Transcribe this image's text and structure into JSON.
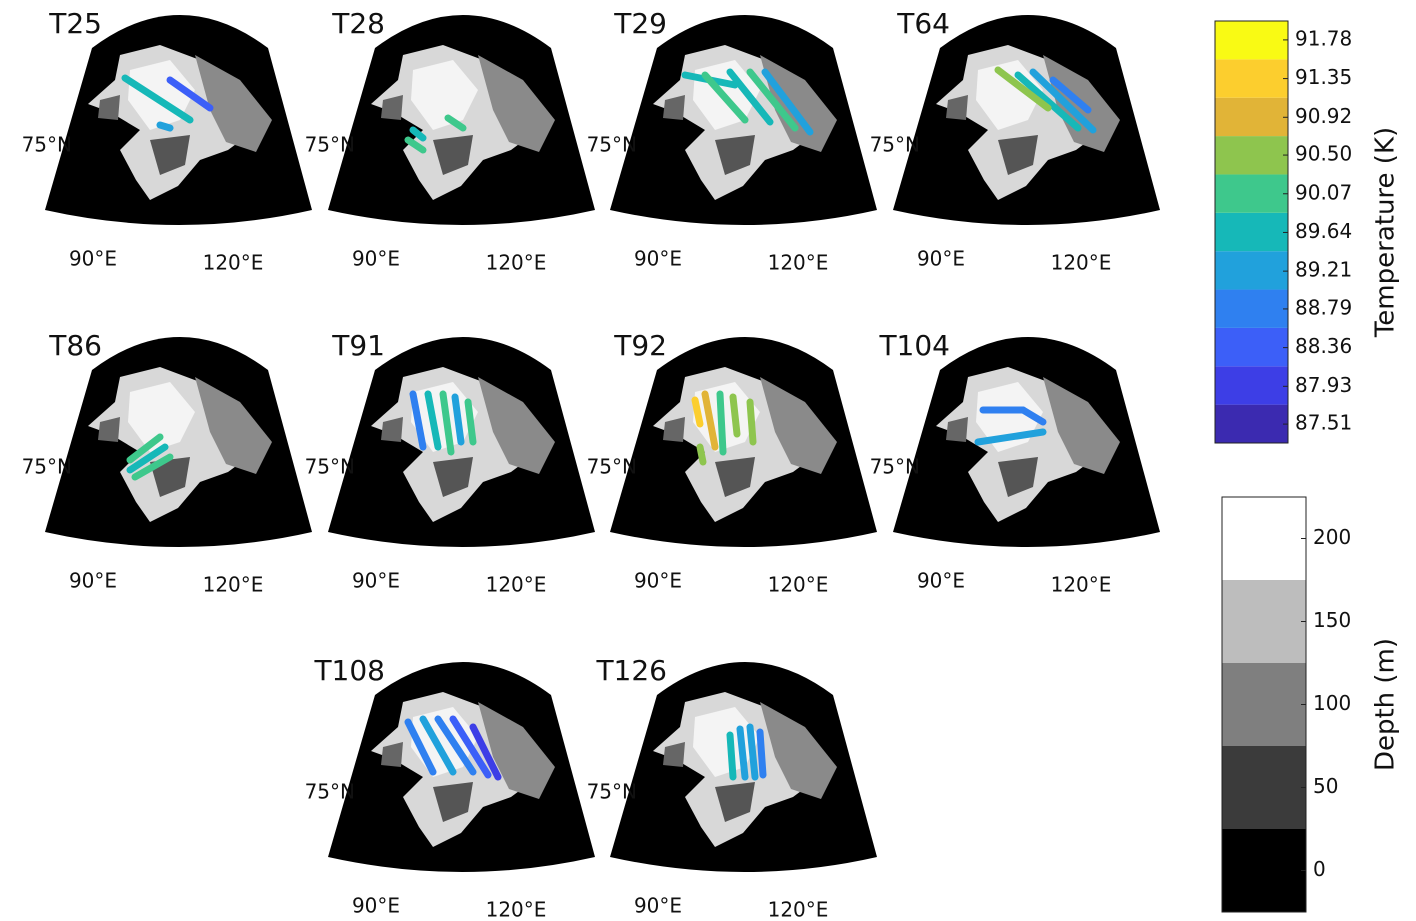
{
  "panels": [
    {
      "title": "T25",
      "lat_label": "75°N",
      "lon_labels": [
        "90°E",
        "120°E"
      ]
    },
    {
      "title": "T28",
      "lat_label": "75°N",
      "lon_labels": [
        "90°E",
        "120°E"
      ]
    },
    {
      "title": "T29",
      "lat_label": "75°N",
      "lon_labels": [
        "90°E",
        "120°E"
      ]
    },
    {
      "title": "T64",
      "lat_label": "75°N",
      "lon_labels": [
        "90°E",
        "120°E"
      ]
    },
    {
      "title": "T86",
      "lat_label": "75°N",
      "lon_labels": [
        "90°E",
        "120°E"
      ]
    },
    {
      "title": "T91",
      "lat_label": "75°N",
      "lon_labels": [
        "90°E",
        "120°E"
      ]
    },
    {
      "title": "T92",
      "lat_label": "75°N",
      "lon_labels": [
        "90°E",
        "120°E"
      ]
    },
    {
      "title": "T104",
      "lat_label": "75°N",
      "lon_labels": [
        "90°E",
        "120°E"
      ]
    },
    {
      "title": "T108",
      "lat_label": "75°N",
      "lon_labels": [
        "90°E",
        "120°E"
      ]
    },
    {
      "title": "T126",
      "lat_label": "75°N",
      "lon_labels": [
        "90°E",
        "120°E"
      ]
    }
  ],
  "temperature_colorbar": {
    "label": "Temperature (K)",
    "lim": [
      87.3,
      91.99
    ],
    "ticks": [
      87.51,
      87.93,
      88.36,
      88.79,
      89.21,
      89.64,
      90.07,
      {
        "value": 90.5,
        "label": "90.50"
      },
      90.92,
      91.35,
      91.78
    ],
    "colors": [
      "#3b2ab0",
      "#3d3ee6",
      "#3c5ff8",
      "#2f80f0",
      "#21a1dc",
      "#16b8b8",
      "#3ec88c",
      "#8ec54e",
      "#e1b437",
      "#fcce2e",
      "#f9fa14"
    ]
  },
  "depth_colorbar": {
    "label": "Depth (m)",
    "lim": [
      -25,
      225
    ],
    "ticks": [
      0,
      50,
      100,
      150,
      200
    ],
    "colors": [
      "#000000",
      "#3b3b3b",
      "#7f7f7f",
      "#bdbdbd",
      "#ffffff"
    ]
  }
}
